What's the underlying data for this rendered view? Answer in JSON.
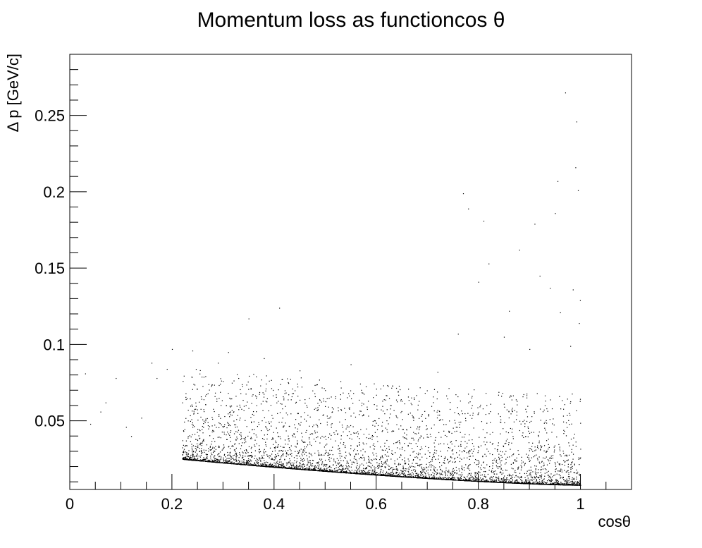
{
  "chart_data": {
    "type": "scatter",
    "title": "Momentum loss as functioncos θ",
    "xlabel": "cosθ",
    "ylabel": "Δ p [GeV/c]",
    "xlim": [
      0,
      1.1
    ],
    "ylim": [
      0.005,
      0.29
    ],
    "x_ticks": [
      0,
      0.2,
      0.4,
      0.6,
      0.8,
      1
    ],
    "x_tick_labels": [
      "0",
      "0.2",
      "0.4",
      "0.6",
      "0.8",
      "1"
    ],
    "y_ticks": [
      0.05,
      0.1,
      0.15,
      0.2,
      0.25
    ],
    "y_tick_labels": [
      "0.05",
      "0.1",
      "0.15",
      "0.2",
      "0.25"
    ],
    "grid": false,
    "legend": "none",
    "marker_color": "#000000",
    "series": [
      {
        "values_description_points": [
          [
            0.03,
            0.081
          ],
          [
            0.04,
            0.048
          ],
          [
            0.06,
            0.056
          ],
          [
            0.07,
            0.062
          ],
          [
            0.09,
            0.078
          ],
          [
            0.11,
            0.046
          ],
          [
            0.12,
            0.04
          ],
          [
            0.14,
            0.052
          ],
          [
            0.16,
            0.088
          ],
          [
            0.17,
            0.078
          ],
          [
            0.19,
            0.084
          ],
          [
            0.2,
            0.097
          ],
          [
            0.22,
            0.062
          ],
          [
            0.24,
            0.096
          ],
          [
            0.25,
            0.055
          ],
          [
            0.27,
            0.068
          ],
          [
            0.29,
            0.088
          ],
          [
            0.31,
            0.095
          ],
          [
            0.33,
            0.078
          ],
          [
            0.35,
            0.117
          ],
          [
            0.38,
            0.091
          ],
          [
            0.41,
            0.124
          ],
          [
            0.45,
            0.083
          ],
          [
            0.52,
            0.066
          ],
          [
            0.55,
            0.087
          ],
          [
            0.6,
            0.071
          ],
          [
            0.65,
            0.063
          ],
          [
            0.72,
            0.082
          ],
          [
            0.76,
            0.107
          ],
          [
            0.77,
            0.199
          ],
          [
            0.78,
            0.189
          ],
          [
            0.8,
            0.141
          ],
          [
            0.81,
            0.181
          ],
          [
            0.82,
            0.153
          ],
          [
            0.85,
            0.105
          ],
          [
            0.86,
            0.122
          ],
          [
            0.88,
            0.162
          ],
          [
            0.9,
            0.097
          ],
          [
            0.91,
            0.179
          ],
          [
            0.92,
            0.145
          ],
          [
            0.94,
            0.137
          ],
          [
            0.95,
            0.186
          ],
          [
            0.955,
            0.207
          ],
          [
            0.96,
            0.121
          ],
          [
            0.97,
            0.265
          ],
          [
            0.98,
            0.099
          ],
          [
            0.985,
            0.136
          ],
          [
            0.99,
            0.216
          ],
          [
            0.992,
            0.246
          ],
          [
            0.995,
            0.201
          ],
          [
            0.997,
            0.114
          ],
          [
            0.999,
            0.129
          ]
        ]
      }
    ]
  }
}
